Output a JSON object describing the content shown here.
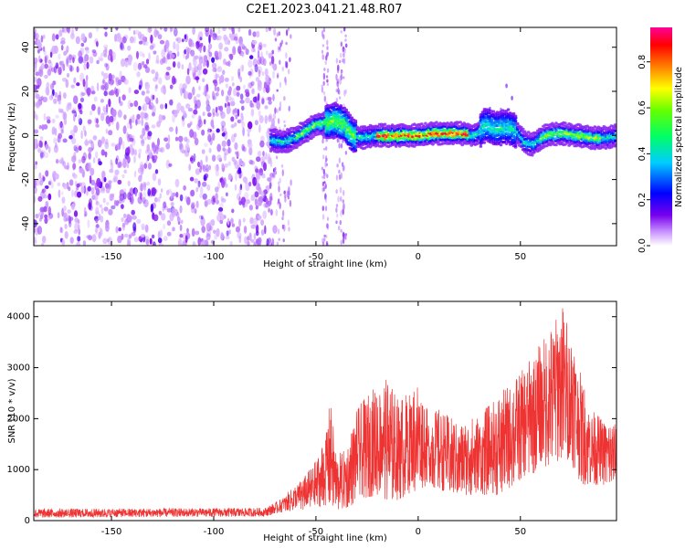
{
  "title": "C2E1.2023.041.21.48.R07",
  "chart_data": [
    {
      "type": "heatmap",
      "xlabel": "Height of straight line (km)",
      "ylabel": "Frequency (Hz)",
      "xlim": [
        -188,
        97
      ],
      "ylim": [
        -50,
        49
      ],
      "x_ticks": [
        -150,
        -100,
        -50,
        0,
        50
      ],
      "y_ticks": [
        -40,
        -20,
        0,
        20,
        40
      ],
      "ridge": {
        "x": [
          -72,
          -66,
          -60,
          -55,
          -50,
          -44,
          -40,
          -36,
          -32,
          -28,
          -20,
          -10,
          0,
          10,
          20,
          28,
          33,
          38,
          44,
          48,
          52,
          56,
          62,
          70,
          78,
          85,
          92,
          97
        ],
        "freq": [
          -2,
          -3,
          -1,
          2,
          5,
          6,
          7,
          5,
          0,
          -1,
          0,
          0,
          0,
          1,
          1,
          0,
          5,
          3,
          4,
          2,
          -3,
          -4,
          0,
          1,
          0,
          -1,
          -1,
          0
        ]
      },
      "noise_region": {
        "x_from": -188,
        "x_to": -70
      },
      "colorbar": {
        "label": "Normalized spectral amplitude",
        "ticks": [
          0.0,
          0.2,
          0.4,
          0.6,
          0.8
        ],
        "range": [
          0,
          0.95
        ],
        "colors": [
          "#ffffff",
          "#7700ee",
          "#0000ff",
          "#00ffff",
          "#00ff00",
          "#ffff00",
          "#ff0000",
          "#ff0099"
        ]
      }
    },
    {
      "type": "line",
      "xlabel": "Height of straight line (km)",
      "ylabel": "SNR (10 * v/v)",
      "xlim": [
        -188,
        97
      ],
      "ylim": [
        0,
        4300
      ],
      "x_ticks": [
        -150,
        -100,
        -50,
        0,
        50
      ],
      "y_ticks": [
        0,
        1000,
        2000,
        3000,
        4000
      ],
      "color": "#ee3333",
      "envelope": {
        "x": [
          -188,
          -75,
          -68,
          -60,
          -55,
          -50,
          -45,
          -43,
          -40,
          -35,
          -30,
          -20,
          -15,
          -10,
          -5,
          0,
          5,
          10,
          20,
          30,
          40,
          50,
          60,
          65,
          70,
          75,
          80,
          85,
          90,
          97
        ],
        "upper": [
          230,
          250,
          400,
          700,
          900,
          1200,
          1700,
          2450,
          1300,
          1400,
          2200,
          2700,
          2800,
          2400,
          2500,
          2800,
          2100,
          2200,
          1900,
          2100,
          2500,
          2900,
          3500,
          3800,
          4300,
          3800,
          2800,
          2200,
          2000,
          1900
        ],
        "lower": [
          60,
          80,
          150,
          200,
          200,
          250,
          300,
          300,
          200,
          200,
          400,
          500,
          400,
          400,
          500,
          600,
          700,
          600,
          500,
          500,
          500,
          800,
          1000,
          1100,
          1200,
          1100,
          700,
          700,
          700,
          700
        ]
      }
    }
  ]
}
